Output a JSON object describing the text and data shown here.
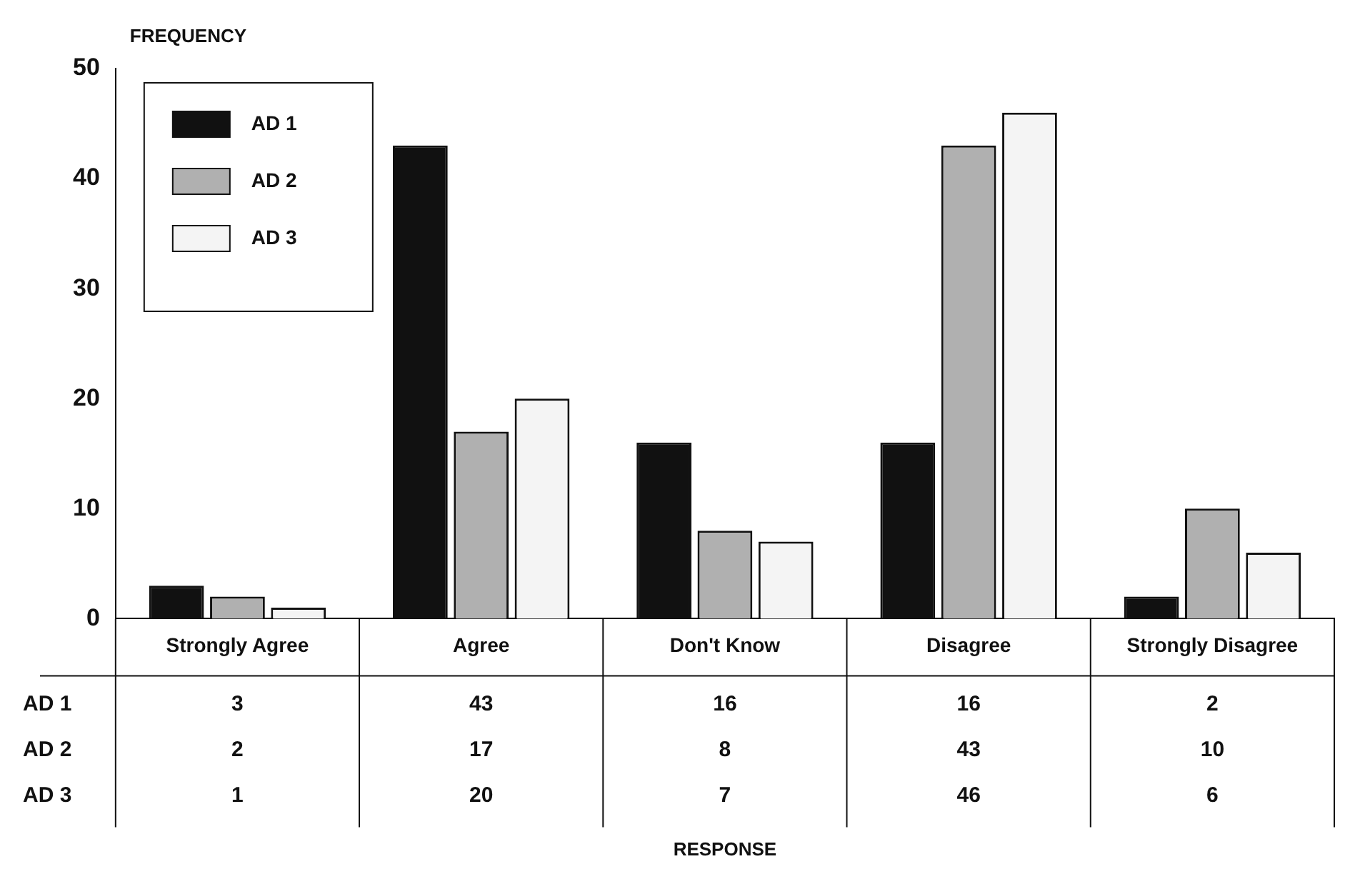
{
  "chart_data": {
    "type": "bar",
    "ylabel": "FREQUENCY",
    "annotations": [
      "RESPONSE"
    ],
    "categories": [
      "Strongly Agree",
      "Agree",
      "Don't Know",
      "Disagree",
      "Strongly Disagree"
    ],
    "series": [
      {
        "name": "AD 1",
        "color": "#111111",
        "values": [
          3,
          43,
          16,
          16,
          2
        ]
      },
      {
        "name": "AD 2",
        "color": "#b0b0b0",
        "values": [
          2,
          17,
          8,
          43,
          10
        ]
      },
      {
        "name": "AD 3",
        "color": "#f4f4f4",
        "values": [
          1,
          20,
          7,
          46,
          6
        ]
      }
    ],
    "ylim": [
      0,
      50
    ],
    "yticks": [
      0,
      10,
      20,
      30,
      40,
      50
    ],
    "legend": "top left",
    "data_labels": true
  }
}
